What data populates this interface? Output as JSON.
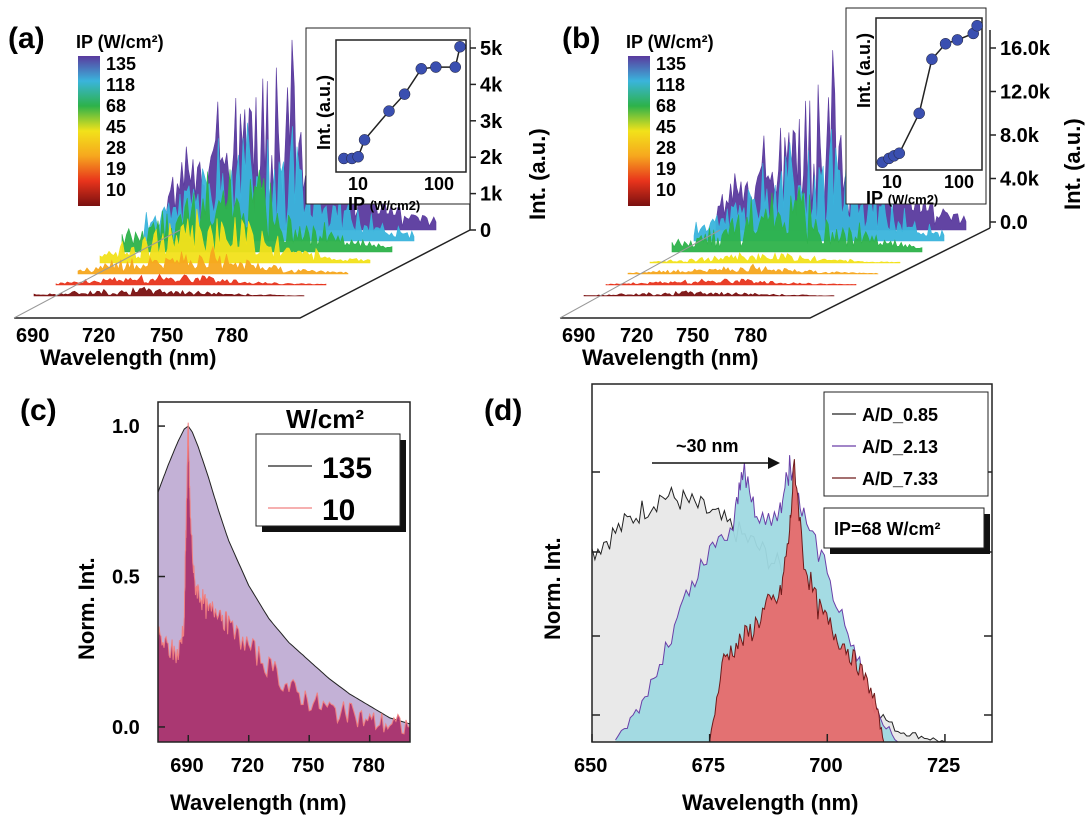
{
  "panels": {
    "a": {
      "label": "(a)",
      "colorbar_title": "IP (W/cm²)",
      "colorbar_levels": [
        "135",
        "118",
        "68",
        "45",
        "28",
        "19",
        "10"
      ],
      "colorbar_colors": [
        "#5a3a9e",
        "#3ab4dc",
        "#2db24a",
        "#f2e21a",
        "#f6a71e",
        "#e8341c",
        "#7a1010"
      ],
      "xlabel": "Wavelength (nm)",
      "x_ticks": [
        "690",
        "720",
        "750",
        "780"
      ],
      "z_label": "Int. (a.u.)",
      "z_ticks": [
        "5k",
        "4k",
        "3k",
        "2k",
        "1k",
        "0"
      ],
      "inset": {
        "ylabel": "Int. (a.u.)",
        "xlabel_main": "IP",
        "xlabel_unit": "(W/cm2)",
        "x_ticks": [
          "10",
          "100"
        ]
      }
    },
    "b": {
      "label": "(b)",
      "colorbar_title": "IP (W/cm²)",
      "colorbar_levels": [
        "135",
        "118",
        "68",
        "45",
        "28",
        "19",
        "10"
      ],
      "xlabel": "Wavelength (nm)",
      "x_ticks": [
        "690",
        "720",
        "750",
        "780"
      ],
      "z_label": "Int. (a.u.)",
      "z_ticks": [
        "16.0k",
        "12.0k",
        "8.0k",
        "4.0k",
        "0.0"
      ],
      "inset": {
        "ylabel": "Int. (a.u.)",
        "xlabel_main": "IP",
        "xlabel_unit": "(W/cm2)",
        "x_ticks": [
          "10",
          "100"
        ]
      }
    },
    "c": {
      "label": "(c)",
      "xlabel": "Wavelength (nm)",
      "ylabel": "Norm. Int.",
      "legend_title": "W/cm²",
      "x_ticks": [
        "690",
        "720",
        "750",
        "780"
      ],
      "y_ticks": [
        "1.0",
        "0.5",
        "0.0"
      ]
    },
    "d": {
      "label": "(d)",
      "xlabel": "Wavelength (nm)",
      "ylabel": "Norm. Int.",
      "x_ticks": [
        "650",
        "675",
        "700",
        "725"
      ],
      "annotation": "~30 nm",
      "ip_box": "IP=68 W/cm²"
    }
  },
  "chart_data": [
    {
      "panel": "a",
      "type": "area",
      "note_type": "3D waterfall of emission spectra",
      "xlabel": "Wavelength (nm)",
      "zlabel": "Int. (a.u.)",
      "xlim": [
        680,
        800
      ],
      "zlim": [
        0,
        5000
      ],
      "series": [
        {
          "name": "10",
          "color": "#7a1010"
        },
        {
          "name": "19",
          "color": "#e8341c"
        },
        {
          "name": "28",
          "color": "#f6a71e"
        },
        {
          "name": "45",
          "color": "#f2e21a"
        },
        {
          "name": "68",
          "color": "#2db24a"
        },
        {
          "name": "118",
          "color": "#3ab4dc"
        },
        {
          "name": "135",
          "color": "#5a3a9e"
        }
      ]
    },
    {
      "panel": "a-inset",
      "type": "scatter",
      "xlabel": "IP (W/cm2)",
      "ylabel": "Int. (a.u.)",
      "x_scale": "log",
      "x": [
        5,
        6.3,
        7.5,
        9,
        18,
        28,
        45,
        68,
        118,
        135
      ],
      "y": [
        1800,
        1800,
        1850,
        2350,
        3200,
        3700,
        4450,
        4500,
        4500,
        5100
      ],
      "color": "#3a4fb0"
    },
    {
      "panel": "b",
      "type": "area",
      "note_type": "3D waterfall of emission spectra",
      "xlabel": "Wavelength (nm)",
      "zlabel": "Int. (a.u.)",
      "xlim": [
        680,
        800
      ],
      "zlim": [
        0,
        18000
      ],
      "series": [
        {
          "name": "10",
          "color": "#7a1010"
        },
        {
          "name": "19",
          "color": "#e8341c"
        },
        {
          "name": "28",
          "color": "#f6a71e"
        },
        {
          "name": "45",
          "color": "#f2e21a"
        },
        {
          "name": "68",
          "color": "#2db24a"
        },
        {
          "name": "118",
          "color": "#3ab4dc"
        },
        {
          "name": "135",
          "color": "#5a3a9e"
        }
      ]
    },
    {
      "panel": "b-inset",
      "type": "scatter",
      "xlabel": "IP (W/cm2)",
      "ylabel": "Int. (a.u.)",
      "x_scale": "log",
      "x": [
        5,
        6.3,
        7.5,
        9,
        18,
        28,
        45,
        68,
        118,
        135
      ],
      "y": [
        7000,
        7300,
        7500,
        7700,
        10800,
        15000,
        16200,
        16500,
        17000,
        17600
      ],
      "color": "#3a4fb0"
    },
    {
      "panel": "c",
      "type": "area",
      "xlabel": "Wavelength (nm)",
      "ylabel": "Norm. Int.",
      "xlim": [
        675,
        800
      ],
      "ylim": [
        -0.05,
        1.08
      ],
      "series": [
        {
          "name": "135",
          "color": "#222222",
          "fill": "#b8a3cf",
          "x": [
            675,
            680,
            685,
            688,
            690,
            692,
            695,
            700,
            705,
            710,
            720,
            730,
            740,
            750,
            760,
            770,
            780,
            790,
            800
          ],
          "y": [
            0.78,
            0.87,
            0.95,
            0.99,
            1.0,
            0.98,
            0.93,
            0.83,
            0.72,
            0.62,
            0.47,
            0.36,
            0.28,
            0.22,
            0.16,
            0.11,
            0.07,
            0.03,
            0.01
          ]
        },
        {
          "name": "10",
          "color": "#f08080",
          "fill": "#a9316d",
          "x": [
            675,
            680,
            685,
            688,
            689,
            690,
            691,
            693,
            696,
            700,
            705,
            710,
            720,
            730,
            740,
            750,
            760,
            770,
            780,
            790,
            800
          ],
          "y": [
            0.3,
            0.26,
            0.24,
            0.35,
            0.7,
            1.0,
            0.7,
            0.48,
            0.44,
            0.38,
            0.4,
            0.33,
            0.27,
            0.2,
            0.13,
            0.09,
            0.06,
            0.04,
            0.02,
            0.01,
            0.0
          ]
        }
      ]
    },
    {
      "panel": "d",
      "type": "area",
      "xlabel": "Wavelength (nm)",
      "ylabel": "Norm. Int.",
      "xlim": [
        650,
        735
      ],
      "series": [
        {
          "name": "A/D_0.85",
          "color": "#222222",
          "fill": "#e8e8e8",
          "x": [
            650,
            655,
            660,
            665,
            670,
            675,
            680,
            685,
            690,
            695,
            700,
            705,
            710,
            715,
            720,
            725
          ],
          "y": [
            0.68,
            0.75,
            0.82,
            0.88,
            0.86,
            0.82,
            0.76,
            0.7,
            0.62,
            0.52,
            0.4,
            0.26,
            0.12,
            0.04,
            0.02,
            0.0
          ]
        },
        {
          "name": "A/D_2.13",
          "color": "#6a3fa8",
          "fill": "#9fd9e2",
          "x": [
            655,
            660,
            665,
            670,
            675,
            680,
            682,
            685,
            690,
            692,
            695,
            700,
            705,
            710,
            715
          ],
          "y": [
            0.0,
            0.12,
            0.3,
            0.52,
            0.68,
            0.78,
            0.98,
            0.8,
            0.82,
            0.98,
            0.8,
            0.6,
            0.38,
            0.12,
            0.0
          ]
        },
        {
          "name": "A/D_7.33",
          "color": "#6e1a1a",
          "fill": "#e76b6b",
          "x": [
            675,
            678,
            681,
            684,
            687,
            690,
            692,
            693,
            695,
            698,
            701,
            704,
            707,
            710,
            712
          ],
          "y": [
            0.0,
            0.3,
            0.35,
            0.4,
            0.48,
            0.52,
            0.75,
            1.0,
            0.65,
            0.48,
            0.4,
            0.34,
            0.26,
            0.16,
            0.0
          ]
        }
      ]
    }
  ],
  "legend_c": {
    "entries": [
      "135",
      "10"
    ]
  },
  "legend_d": {
    "entries": [
      "A/D_0.85",
      "A/D_2.13",
      "A/D_7.33"
    ]
  }
}
